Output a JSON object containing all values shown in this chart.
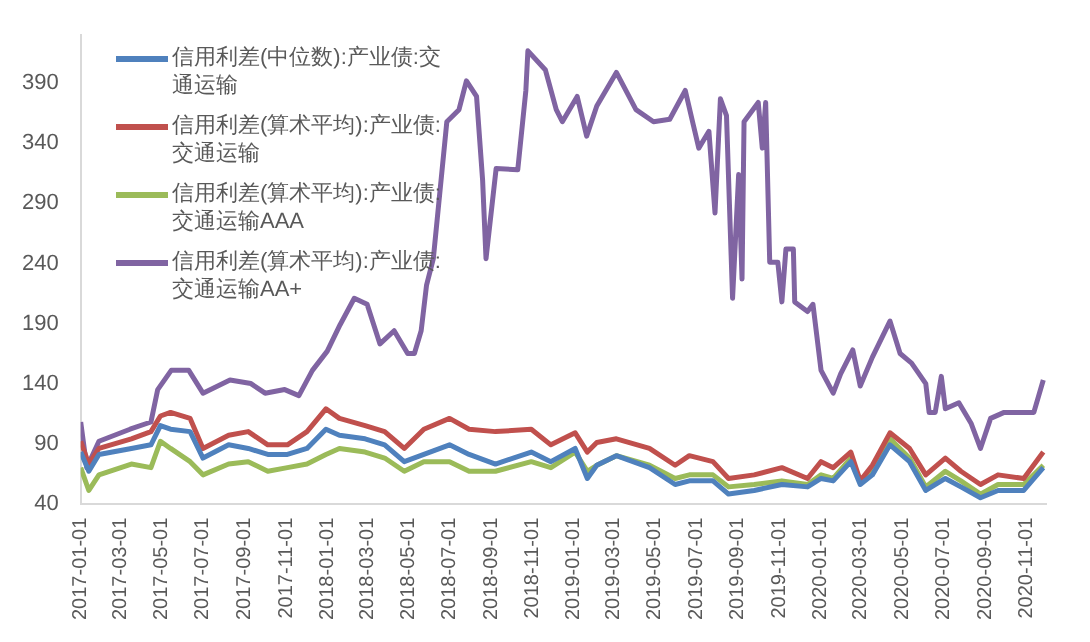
{
  "chart_data": {
    "type": "line",
    "legend": "top left",
    "x": [
      "2017-01-01",
      "2017-01-13",
      "2017-01-28",
      "2017-03-17",
      "2017-04-15",
      "2017-04-29",
      "2017-05-14",
      "2017-06-12",
      "2017-07-01",
      "2017-08-08",
      "2017-09-06",
      "2017-10-05",
      "2017-11-03",
      "2017-12-02",
      "2017-12-30",
      "2018-01-19",
      "2018-02-26",
      "2018-03-27",
      "2018-04-25",
      "2018-05-24",
      "2018-07-01",
      "2018-07-30",
      "2018-09-07",
      "2018-10-30",
      "2018-11-28",
      "2019-01-03",
      "2019-01-21",
      "2019-02-04",
      "2019-03-05",
      "2019-04-23",
      "2019-05-31",
      "2019-06-21",
      "2019-07-26",
      "2019-08-18",
      "2019-09-25",
      "2019-11-05",
      "2019-12-13",
      "2020-01-02",
      "2020-01-20",
      "2020-02-15",
      "2020-02-29",
      "2020-03-18",
      "2020-04-13",
      "2020-05-12",
      "2020-06-05",
      "2020-07-04",
      "2020-07-27",
      "2020-08-25",
      "2020-09-20",
      "2020-10-28",
      "2020-11-26"
    ],
    "xlim": [
      "2017-01-01",
      "2020-11-30"
    ],
    "xticks": [
      "2017-01-01",
      "2017-03-01",
      "2017-05-01",
      "2017-07-01",
      "2017-09-01",
      "2017-11-01",
      "2018-01-01",
      "2018-03-01",
      "2018-05-01",
      "2018-07-01",
      "2018-09-01",
      "2018-11-01",
      "2019-01-01",
      "2019-03-01",
      "2019-05-01",
      "2019-07-01",
      "2019-09-01",
      "2019-11-01",
      "2020-01-01",
      "2020-03-01",
      "2020-05-01",
      "2020-07-01",
      "2020-09-01",
      "2020-11-01"
    ],
    "ylim": [
      40,
      430
    ],
    "yticks": [
      40,
      90,
      140,
      190,
      240,
      290,
      340,
      390
    ],
    "series": [
      {
        "name": "信用利差(中位数):产业债:交通运输",
        "color": "#4f81bd",
        "values": [
          83,
          67,
          81,
          86,
          89,
          105,
          102,
          100,
          78,
          89,
          86,
          81,
          81,
          86,
          102,
          97,
          94,
          89,
          75,
          81,
          89,
          81,
          73,
          83,
          75,
          86,
          61,
          72,
          80,
          70,
          56,
          59,
          59,
          48,
          51,
          56,
          54,
          61,
          59,
          75,
          56,
          64,
          89,
          75,
          51,
          61,
          54,
          45,
          51,
          51,
          70
        ]
      },
      {
        "name": "信用利差(算术平均):产业债:交通运输",
        "color": "#c0504d",
        "values": [
          92,
          73,
          86,
          94,
          100,
          113,
          116,
          111,
          86,
          97,
          100,
          89,
          89,
          100,
          119,
          111,
          105,
          100,
          86,
          102,
          111,
          102,
          100,
          102,
          89,
          99,
          83,
          91,
          94,
          86,
          72,
          80,
          75,
          61,
          64,
          70,
          61,
          75,
          70,
          83,
          59,
          72,
          99,
          86,
          64,
          78,
          67,
          56,
          64,
          61,
          83
        ]
      },
      {
        "name": "信用利差(算术平均):产业债:交通运输AAA",
        "color": "#9bbb59",
        "values": [
          70,
          51,
          64,
          73,
          70,
          92,
          86,
          75,
          64,
          73,
          75,
          67,
          70,
          73,
          81,
          86,
          83,
          78,
          67,
          75,
          75,
          67,
          67,
          75,
          70,
          83,
          67,
          72,
          80,
          72,
          61,
          64,
          64,
          54,
          56,
          59,
          56,
          64,
          61,
          78,
          59,
          67,
          94,
          78,
          54,
          67,
          59,
          48,
          56,
          56,
          72
        ]
      },
      {
        "name": "信用利差(算术平均):产业债:交通运输AA+",
        "color": "#8064a2",
        "x": [
          "2017-01-01",
          "2017-01-10",
          "2017-01-28",
          "2017-03-15",
          "2017-04-15",
          "2017-04-25",
          "2017-05-15",
          "2017-06-10",
          "2017-07-01",
          "2017-08-10",
          "2017-09-10",
          "2017-10-01",
          "2017-10-30",
          "2017-11-20",
          "2017-12-10",
          "2018-01-01",
          "2018-01-20",
          "2018-02-10",
          "2018-03-01",
          "2018-03-20",
          "2018-04-10",
          "2018-04-30",
          "2018-05-10",
          "2018-05-20",
          "2018-05-28",
          "2018-06-07",
          "2018-06-27",
          "2018-07-15",
          "2018-07-26",
          "2018-08-10",
          "2018-08-19",
          "2018-08-24",
          "2018-09-08",
          "2018-10-10",
          "2018-10-22",
          "2018-10-25",
          "2018-11-20",
          "2018-12-06",
          "2018-12-15",
          "2019-01-06",
          "2019-01-20",
          "2019-02-04",
          "2019-03-05",
          "2019-04-03",
          "2019-04-29",
          "2019-05-23",
          "2019-06-15",
          "2019-06-27",
          "2019-07-05",
          "2019-07-20",
          "2019-07-29",
          "2019-08-06",
          "2019-08-15",
          "2019-08-24",
          "2019-09-02",
          "2019-09-07",
          "2019-09-10",
          "2019-10-01",
          "2019-10-07",
          "2019-10-12",
          "2019-10-18",
          "2019-10-30",
          "2019-11-05",
          "2019-11-11",
          "2019-11-22",
          "2019-11-24",
          "2019-12-13",
          "2019-12-21",
          "2020-01-02",
          "2020-01-20",
          "2020-01-31",
          "2020-02-18",
          "2020-02-29",
          "2020-03-18",
          "2020-04-13",
          "2020-04-28",
          "2020-05-15",
          "2020-06-05",
          "2020-06-10",
          "2020-06-19",
          "2020-06-28",
          "2020-07-04",
          "2020-07-24",
          "2020-08-11",
          "2020-08-25",
          "2020-09-09",
          "2020-09-29",
          "2020-10-20",
          "2020-11-12",
          "2020-11-26"
        ],
        "values": [
          108,
          70,
          92,
          102,
          108,
          135,
          151,
          151,
          132,
          143,
          140,
          132,
          135,
          130,
          151,
          167,
          189,
          211,
          206,
          173,
          184,
          165,
          165,
          184,
          222,
          244,
          358,
          368,
          392,
          379,
          309,
          244,
          319,
          318,
          384,
          417,
          401,
          368,
          358,
          379,
          346,
          371,
          399,
          368,
          358,
          360,
          384,
          355,
          336,
          350,
          282,
          377,
          363,
          211,
          314,
          227,
          358,
          374,
          336,
          374,
          241,
          241,
          208,
          252,
          252,
          208,
          200,
          206,
          151,
          132,
          148,
          168,
          138,
          162,
          192,
          165,
          157,
          140,
          116,
          116,
          146,
          119,
          124,
          107,
          86,
          111,
          116,
          116,
          116,
          143
        ]
      }
    ]
  }
}
